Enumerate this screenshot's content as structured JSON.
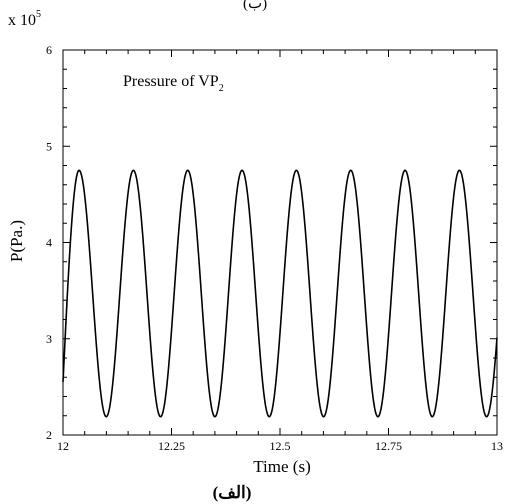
{
  "chart_data": {
    "type": "line",
    "top_caption": "(ب)",
    "caption": "(الف)",
    "annotation_parts": {
      "base": "Pressure of VP",
      "sub": "2"
    },
    "xlabel": "Time (s)",
    "ylabel": "P(Pa.)",
    "scale_label": {
      "base": "x 10",
      "exp": "5"
    },
    "xlim": [
      12,
      13
    ],
    "ylim": [
      2,
      6
    ],
    "x_ticks": [
      12,
      12.25,
      12.5,
      12.75,
      13
    ],
    "x_tick_labels": [
      "12",
      "12.25",
      "12.5",
      "12.75",
      "13"
    ],
    "y_ticks": [
      2,
      3,
      4,
      5,
      6
    ],
    "y_tick_labels": [
      "2",
      "3",
      "4",
      "5",
      "6"
    ],
    "grid": false,
    "series": [
      {
        "label": "VP2 pressure",
        "color": "#000000",
        "signal": {
          "mean": 3.47,
          "amplitude": 1.28,
          "period": 0.1252,
          "first_peak_x": 12.037,
          "x_start": 12.0,
          "x_end": 13.0,
          "start_y": 2.55
        }
      }
    ]
  }
}
